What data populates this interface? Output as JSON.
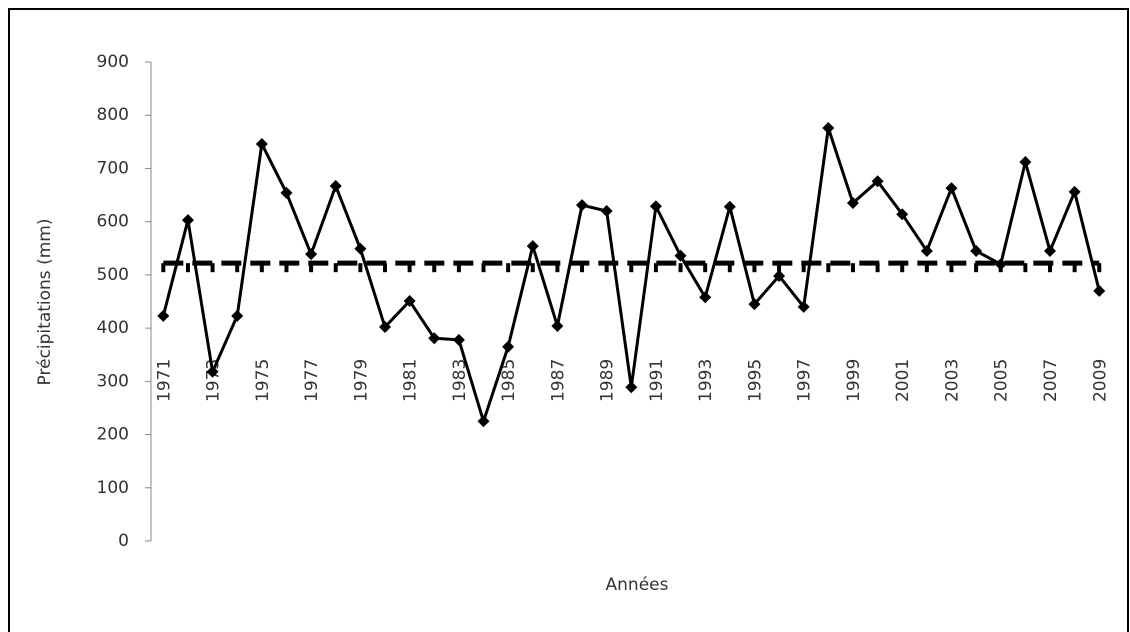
{
  "chart_data": {
    "type": "line",
    "x_label": "Années",
    "y_label": "Précipitations (mm)",
    "categories": [
      "1971",
      null,
      "1973",
      null,
      "1975",
      null,
      "1977",
      null,
      "1979",
      null,
      "1981",
      null,
      "1983",
      null,
      "1985",
      null,
      "1987",
      null,
      "1989",
      null,
      "1991",
      null,
      "1993",
      null,
      "1995",
      null,
      "1997",
      null,
      "1999",
      null,
      "2001",
      null,
      "2003",
      null,
      "2005",
      null,
      "2007",
      null,
      "2009"
    ],
    "series": [
      {
        "color": "#000000",
        "style": "solid",
        "marker": "diamond",
        "values": [
          423,
          603,
          318,
          423,
          746,
          654,
          539,
          667,
          549,
          402,
          451,
          381,
          378,
          225,
          365,
          554,
          404,
          631,
          620,
          289,
          629,
          536,
          458,
          628,
          445,
          498,
          440,
          776,
          635,
          676,
          614,
          545,
          663,
          545,
          520,
          712,
          545,
          656,
          470
        ]
      },
      {
        "color": "#000000",
        "style": "dashed",
        "marker": "dash",
        "values": [
          522,
          522,
          522,
          522,
          522,
          522,
          522,
          522,
          522,
          522,
          522,
          522,
          522,
          522,
          522,
          522,
          522,
          522,
          522,
          522,
          522,
          522,
          522,
          522,
          522,
          522,
          522,
          522,
          522,
          522,
          522,
          522,
          522,
          522,
          522,
          522,
          522,
          522,
          522
        ]
      }
    ],
    "ylim": [
      0,
      900
    ],
    "yticks": [
      0,
      100,
      200,
      300,
      400,
      500,
      600,
      700,
      800,
      900
    ]
  }
}
